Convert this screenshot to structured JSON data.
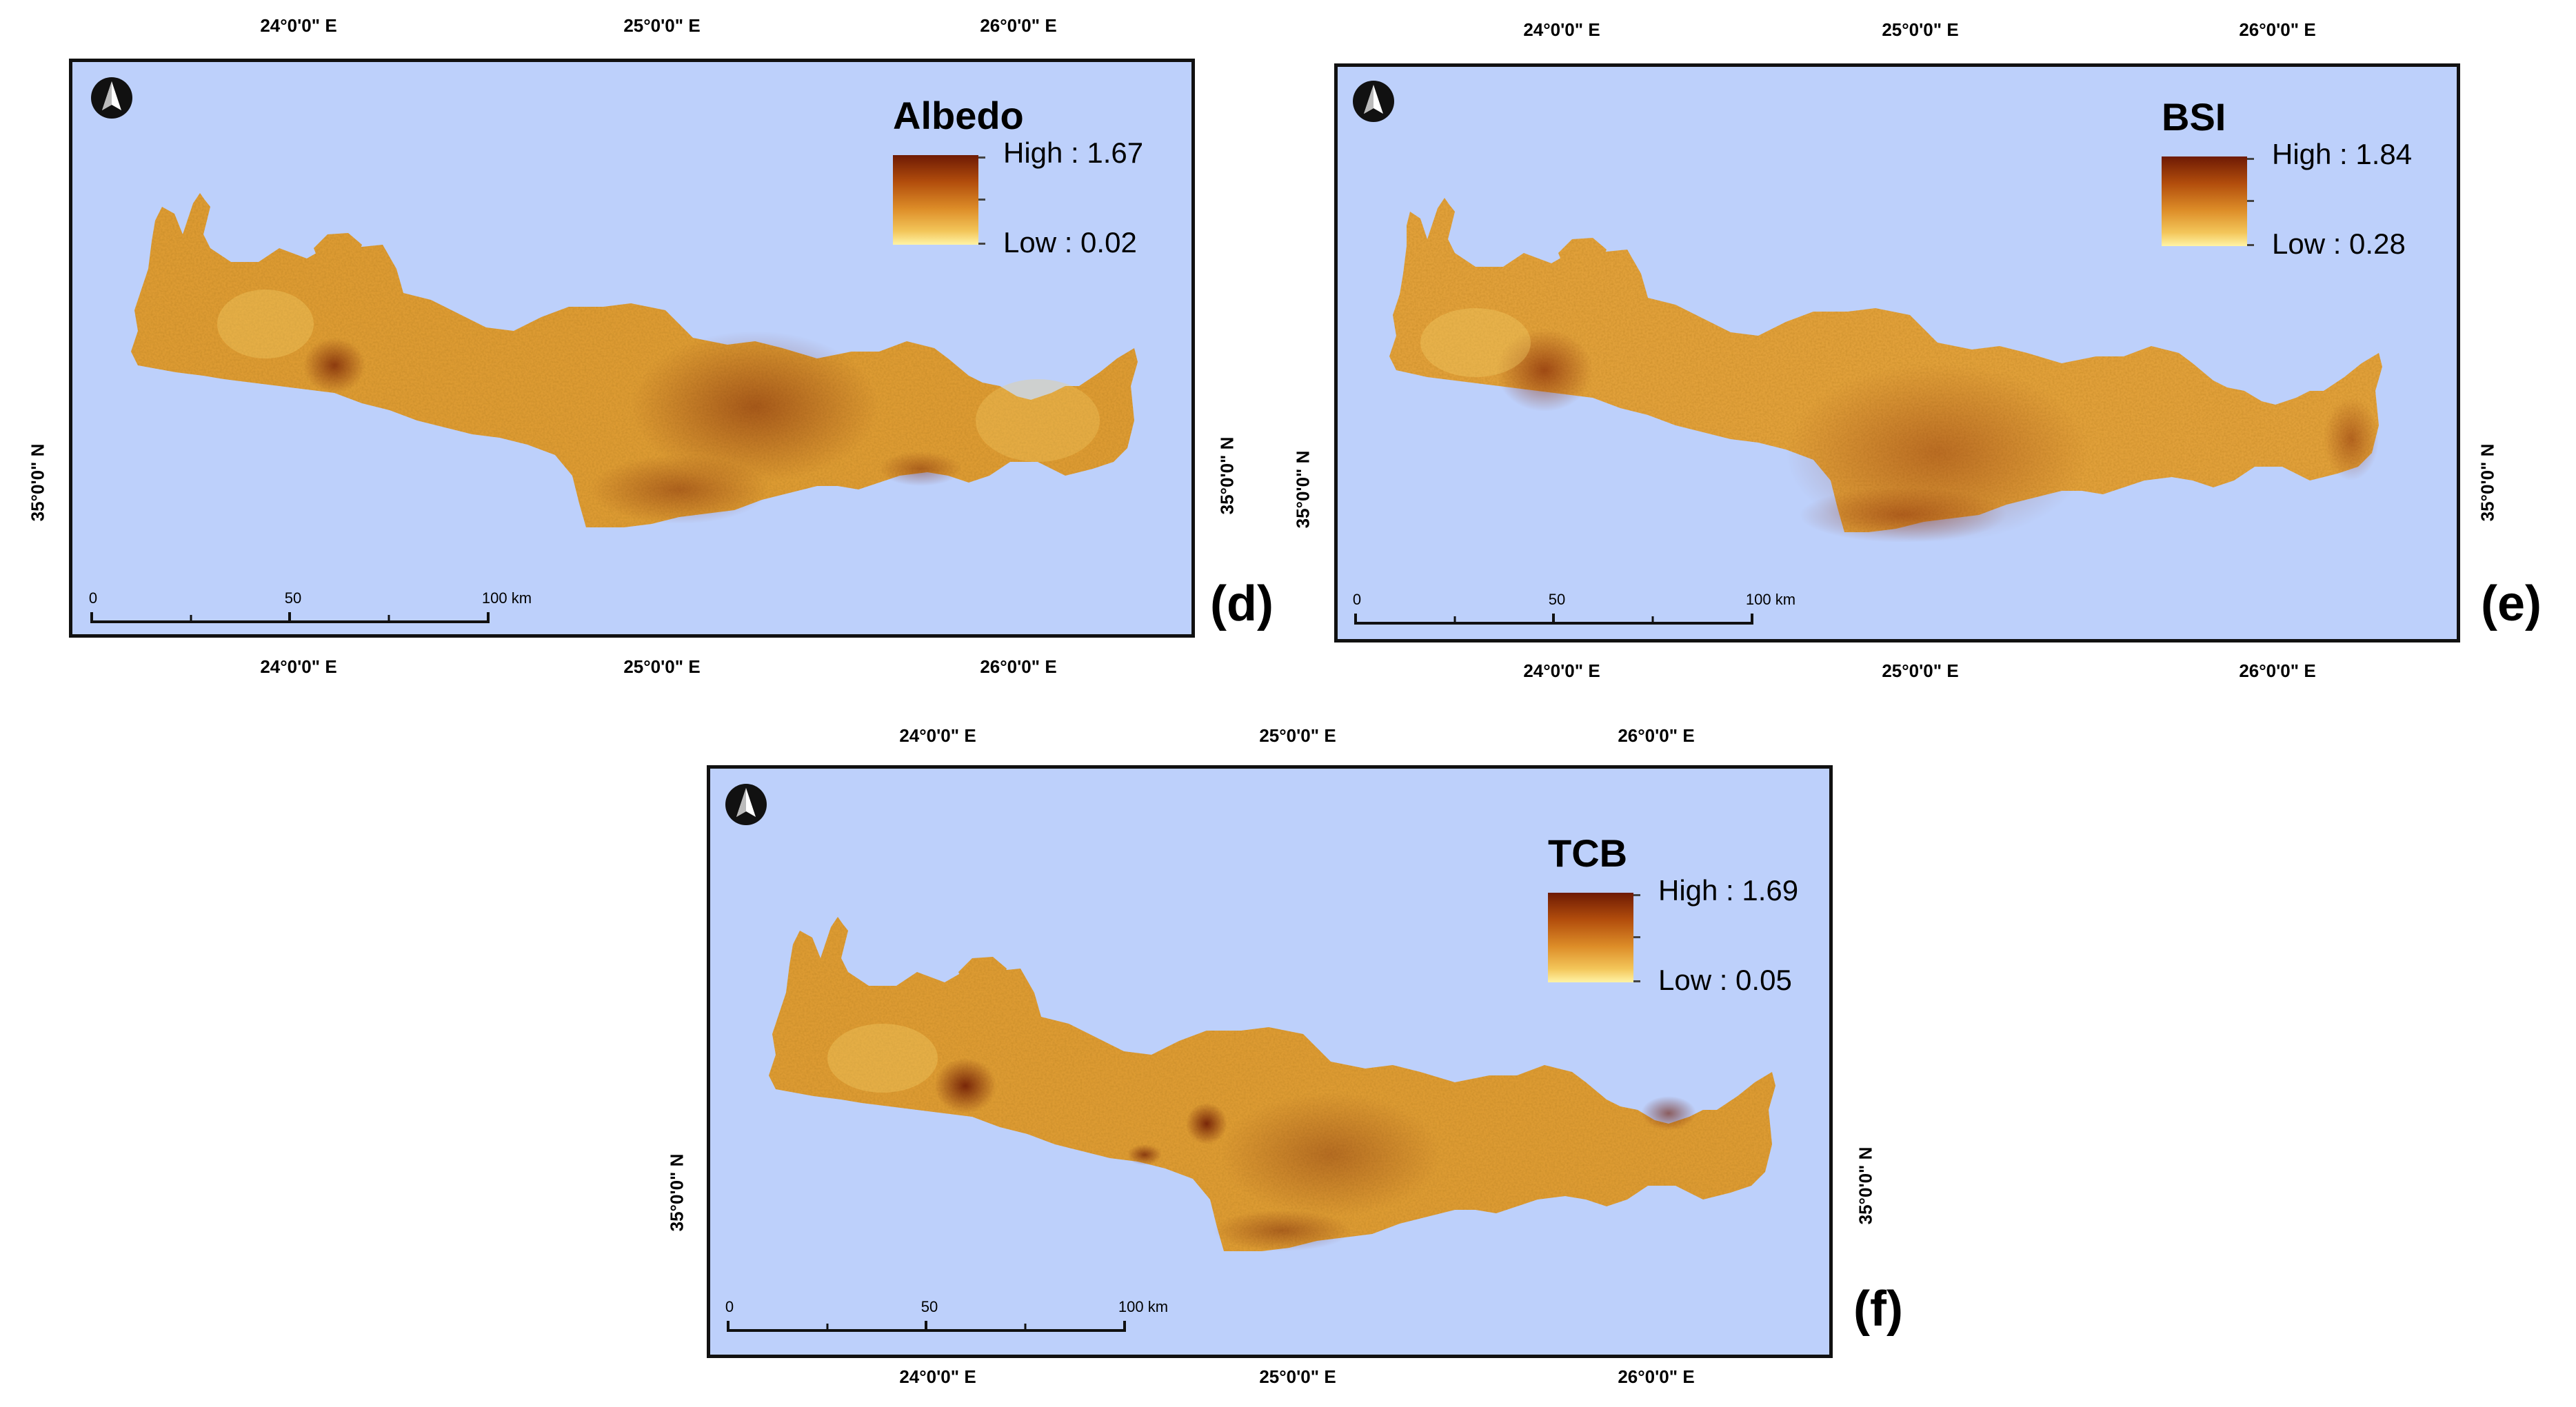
{
  "panels": [
    {
      "letter": "(d)",
      "legend": {
        "title": "Albedo",
        "high": "High : 1.67",
        "low": "Low : 0.02",
        "colors": {
          "high": "#6e1a04",
          "low": "#fff3a5"
        }
      },
      "lon_ticks": [
        "24°0'0\" E",
        "25°0'0\" E",
        "26°0'0\" E"
      ],
      "lat_ticks": [
        "35°0'0\" N"
      ],
      "scale": {
        "labels": [
          "0",
          "50",
          "100 km"
        ]
      }
    },
    {
      "letter": "(e)",
      "legend": {
        "title": "BSI",
        "high": "High : 1.84",
        "low": "Low : 0.28",
        "colors": {
          "high": "#6e1a04",
          "low": "#fff3a5"
        }
      },
      "lon_ticks": [
        "24°0'0\" E",
        "25°0'0\" E",
        "26°0'0\" E"
      ],
      "lat_ticks": [
        "35°0'0\" N"
      ],
      "scale": {
        "labels": [
          "0",
          "50",
          "100 km"
        ]
      }
    },
    {
      "letter": "(f)",
      "legend": {
        "title": "TCB",
        "high": "High : 1.69",
        "low": "Low : 0.05",
        "colors": {
          "high": "#6e1a04",
          "low": "#fff3a5"
        }
      },
      "lon_ticks": [
        "24°0'0\" E",
        "25°0'0\" E",
        "26°0'0\" E"
      ],
      "lat_ticks": [
        "35°0'0\" N"
      ],
      "scale": {
        "labels": [
          "0",
          "50",
          "100 km"
        ]
      }
    }
  ],
  "icons": {
    "north_arrow": "north-arrow-icon"
  },
  "colors": {
    "sea": "#bdd0fb",
    "land_base": "#dd9b33"
  }
}
